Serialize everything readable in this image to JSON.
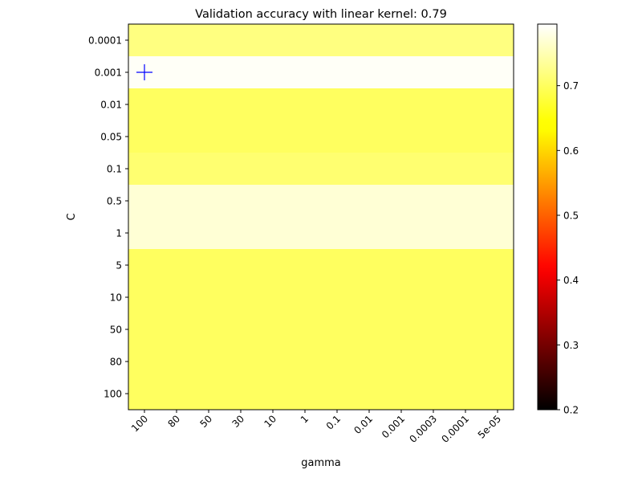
{
  "chart_data": {
    "type": "heatmap",
    "title": "Validation accuracy with linear kernel: 0.79",
    "xlabel": "gamma",
    "ylabel": "C",
    "x_categories": [
      "100",
      "80",
      "50",
      "30",
      "10",
      "1",
      "0.1",
      "0.01",
      "0.001",
      "0.0003",
      "0.0001",
      "5e-05"
    ],
    "y_categories": [
      "0.0001",
      "0.001",
      "0.01",
      "0.05",
      "0.1",
      "0.5",
      "1",
      "5",
      "10",
      "50",
      "80",
      "100"
    ],
    "row_values": [
      0.72,
      0.79,
      0.7,
      0.7,
      0.71,
      0.77,
      0.77,
      0.7,
      0.7,
      0.7,
      0.7,
      0.7
    ],
    "colorbar": {
      "colormap": "hot",
      "range": [
        0.2,
        0.795
      ],
      "ticks": [
        "0.2",
        "0.3",
        "0.4",
        "0.5",
        "0.6",
        "0.7"
      ],
      "tick_values": [
        0.2,
        0.3,
        0.4,
        0.5,
        0.6,
        0.7
      ]
    },
    "best_marker": {
      "x": "100",
      "y": "0.001",
      "symbol": "+",
      "color": "#0000ff"
    },
    "grid": false
  }
}
